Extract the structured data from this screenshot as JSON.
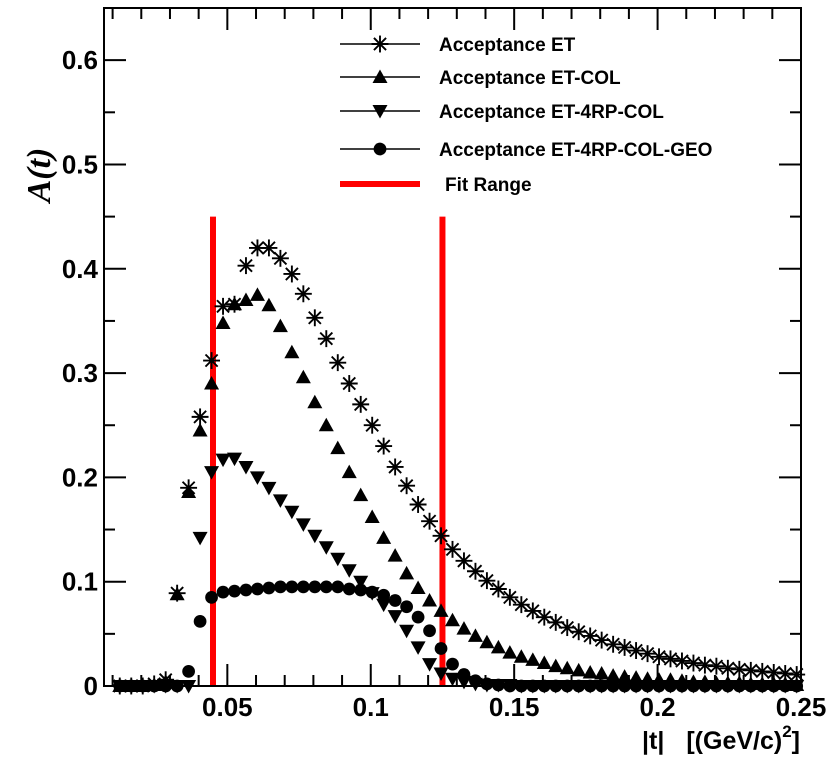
{
  "chart_data": {
    "type": "scatter",
    "title": "",
    "ylabel": "A(t)",
    "xlabel_parts": [
      "|t|",
      "[(GeV/c)",
      "2",
      "]"
    ],
    "xlim": [
      0.007,
      0.25
    ],
    "ylim": [
      0,
      0.65
    ],
    "x_ticks": [
      {
        "value": 0.05,
        "label": "0.05"
      },
      {
        "value": 0.1,
        "label": "0.1"
      },
      {
        "value": 0.15,
        "label": "0.15"
      },
      {
        "value": 0.2,
        "label": "0.2"
      },
      {
        "value": 0.25,
        "label": "0.25"
      }
    ],
    "y_ticks": [
      {
        "value": 0,
        "label": "0"
      },
      {
        "value": 0.1,
        "label": "0.1"
      },
      {
        "value": 0.2,
        "label": "0.2"
      },
      {
        "value": 0.3,
        "label": "0.3"
      },
      {
        "value": 0.4,
        "label": "0.4"
      },
      {
        "value": 0.5,
        "label": "0.5"
      },
      {
        "value": 0.6,
        "label": "0.6"
      }
    ],
    "legend_position": "top-right",
    "fit_range": {
      "name": "Fit Range",
      "color": "#ff0000",
      "x": [
        0.045,
        0.125
      ]
    },
    "x": [
      0.0125,
      0.0165,
      0.0205,
      0.0245,
      0.0285,
      0.0325,
      0.0365,
      0.0405,
      0.0445,
      0.0485,
      0.0525,
      0.0565,
      0.0605,
      0.0645,
      0.0685,
      0.0725,
      0.0765,
      0.0805,
      0.0845,
      0.0885,
      0.0925,
      0.0965,
      0.1005,
      0.1045,
      0.1085,
      0.1125,
      0.1165,
      0.1205,
      0.1245,
      0.1285,
      0.1325,
      0.1365,
      0.1405,
      0.1445,
      0.1485,
      0.1525,
      0.1565,
      0.1605,
      0.1645,
      0.1685,
      0.1725,
      0.1765,
      0.1805,
      0.1845,
      0.1885,
      0.1925,
      0.1965,
      0.2005,
      0.2045,
      0.2085,
      0.2125,
      0.2165,
      0.2205,
      0.2245,
      0.2285,
      0.2325,
      0.2365,
      0.2405,
      0.2445,
      0.2485
    ],
    "series": [
      {
        "name": "Acceptance ET",
        "marker": "star",
        "values": [
          0.0,
          0.0,
          0.0,
          0.002,
          0.006,
          0.089,
          0.19,
          0.258,
          0.312,
          0.364,
          0.366,
          0.403,
          0.42,
          0.42,
          0.41,
          0.395,
          0.376,
          0.353,
          0.333,
          0.31,
          0.29,
          0.27,
          0.25,
          0.23,
          0.21,
          0.192,
          0.174,
          0.158,
          0.144,
          0.131,
          0.12,
          0.11,
          0.101,
          0.093,
          0.085,
          0.078,
          0.072,
          0.066,
          0.061,
          0.056,
          0.052,
          0.048,
          0.044,
          0.04,
          0.037,
          0.034,
          0.031,
          0.028,
          0.026,
          0.024,
          0.022,
          0.02,
          0.019,
          0.017,
          0.016,
          0.015,
          0.014,
          0.013,
          0.012,
          0.011
        ]
      },
      {
        "name": "Acceptance ET-COL",
        "marker": "triangle-up",
        "values": [
          0.0,
          0.0,
          0.0,
          0.001,
          0.004,
          0.088,
          0.186,
          0.245,
          0.29,
          0.348,
          0.366,
          0.37,
          0.375,
          0.365,
          0.345,
          0.32,
          0.296,
          0.272,
          0.25,
          0.228,
          0.205,
          0.183,
          0.162,
          0.142,
          0.125,
          0.108,
          0.094,
          0.082,
          0.072,
          0.063,
          0.055,
          0.048,
          0.042,
          0.037,
          0.032,
          0.028,
          0.025,
          0.022,
          0.019,
          0.017,
          0.015,
          0.013,
          0.012,
          0.01,
          0.009,
          0.008,
          0.007,
          0.006,
          0.006,
          0.005,
          0.004,
          0.004,
          0.003,
          0.003,
          0.003,
          0.002,
          0.002,
          0.002,
          0.002,
          0.001
        ]
      },
      {
        "name": "Acceptance ET-4RP-COL",
        "marker": "triangle-down",
        "values": [
          0.0,
          0.0,
          0.0,
          0.0,
          0.0,
          0.0,
          0.0,
          0.142,
          0.205,
          0.217,
          0.218,
          0.21,
          0.2,
          0.19,
          0.178,
          0.167,
          0.155,
          0.144,
          0.133,
          0.122,
          0.111,
          0.1,
          0.089,
          0.078,
          0.067,
          0.053,
          0.037,
          0.021,
          0.012,
          0.007,
          0.004,
          0.002,
          0.001,
          0.001,
          0.001,
          0.0,
          0.0,
          0.0,
          0.0,
          0.0,
          0.0,
          0.0,
          0.0,
          0.0,
          0.0,
          0.0,
          0.0,
          0.0,
          0.0,
          0.0,
          0.0,
          0.0,
          0.0,
          0.0,
          0.0,
          0.0,
          0.0,
          0.0,
          0.0,
          0.0
        ]
      },
      {
        "name": "Acceptance ET-4RP-COL-GEO",
        "marker": "circle",
        "values": [
          0.0,
          0.0,
          0.0,
          0.0,
          0.0,
          0.0,
          0.014,
          0.062,
          0.085,
          0.09,
          0.091,
          0.092,
          0.093,
          0.094,
          0.095,
          0.095,
          0.095,
          0.095,
          0.095,
          0.095,
          0.093,
          0.092,
          0.09,
          0.087,
          0.082,
          0.076,
          0.066,
          0.053,
          0.036,
          0.021,
          0.011,
          0.005,
          0.002,
          0.001,
          0.0,
          0.0,
          0.0,
          0.0,
          0.0,
          0.0,
          0.0,
          0.0,
          0.0,
          0.0,
          0.0,
          0.0,
          0.0,
          0.0,
          0.0,
          0.0,
          0.0,
          0.0,
          0.0,
          0.0,
          0.0,
          0.0,
          0.0,
          0.0,
          0.0,
          0.0
        ]
      }
    ]
  }
}
